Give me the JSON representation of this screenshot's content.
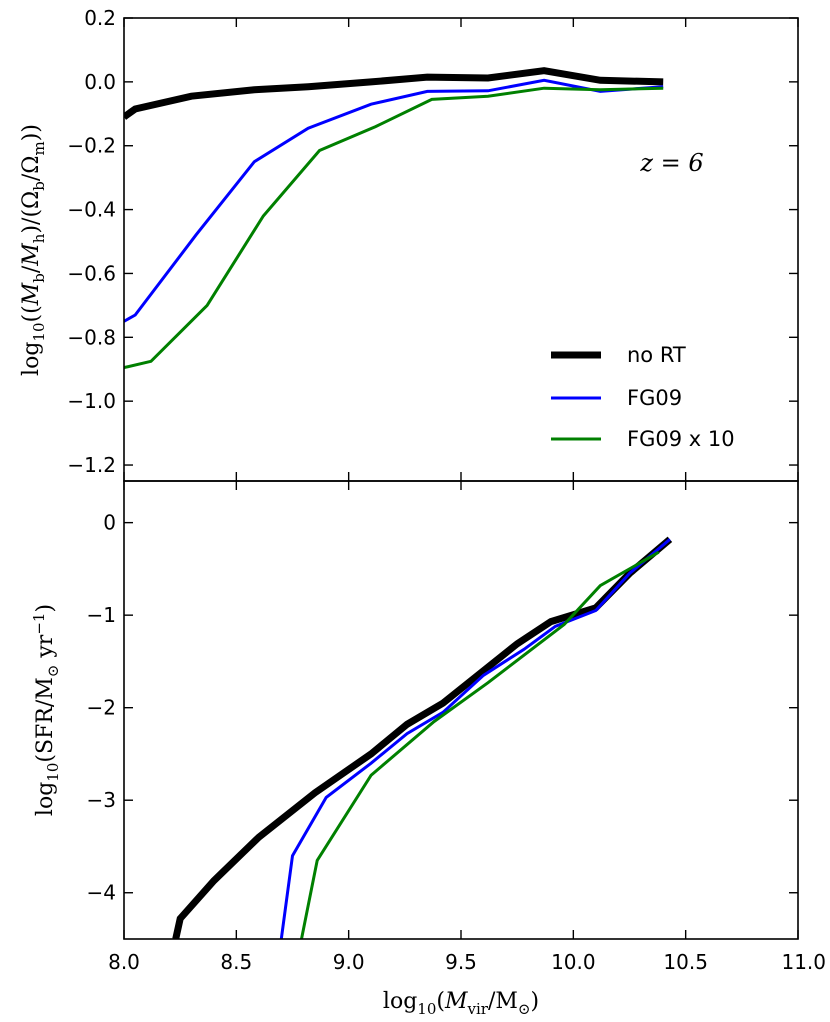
{
  "chart_data": [
    {
      "type": "line",
      "panel": "top",
      "ylabel": "log10((Mb/Mh)/(Ωb/Ωm))",
      "xlim": [
        8.0,
        11.0
      ],
      "ylim": [
        -1.25,
        0.2
      ],
      "yticks": [
        0.2,
        0.0,
        -0.2,
        -0.4,
        -0.6,
        -0.8,
        -1.0,
        -1.2
      ],
      "ytick_labels": [
        "0.2",
        "0.0",
        "−0.2",
        "−0.4",
        "−0.6",
        "−0.8",
        "−1.0",
        "−1.2"
      ],
      "annotation": "z = 6",
      "legend": {
        "placement": "lower-right",
        "entries": [
          "no RT",
          "FG09",
          "FG09 x 10"
        ]
      },
      "series": [
        {
          "name": "no RT",
          "color": "#000000",
          "x": [
            8.0,
            8.05,
            8.3,
            8.58,
            8.82,
            9.1,
            9.35,
            9.62,
            9.87,
            10.12,
            10.4
          ],
          "y": [
            -0.11,
            -0.085,
            -0.045,
            -0.025,
            -0.015,
            0.0,
            0.015,
            0.012,
            0.035,
            0.005,
            0.0
          ]
        },
        {
          "name": "FG09",
          "color": "#0000ff",
          "x": [
            8.0,
            8.05,
            8.32,
            8.58,
            8.82,
            9.1,
            9.35,
            9.62,
            9.87,
            10.12,
            10.4
          ],
          "y": [
            -0.75,
            -0.73,
            -0.48,
            -0.25,
            -0.145,
            -0.07,
            -0.03,
            -0.028,
            0.005,
            -0.03,
            -0.015
          ]
        },
        {
          "name": "FG09 x 10",
          "color": "#008000",
          "x": [
            8.0,
            8.12,
            8.37,
            8.62,
            8.87,
            9.12,
            9.37,
            9.62,
            9.87,
            10.12,
            10.4
          ],
          "y": [
            -0.895,
            -0.875,
            -0.7,
            -0.42,
            -0.215,
            -0.14,
            -0.055,
            -0.045,
            -0.02,
            -0.025,
            -0.02
          ]
        }
      ]
    },
    {
      "type": "line",
      "panel": "bottom",
      "xlabel": "log10(Mvir/M⊙)",
      "ylabel": "log10(SFR/M⊙ yr⁻¹)",
      "xlim": [
        8.0,
        11.0
      ],
      "ylim": [
        -4.5,
        0.45
      ],
      "xticks": [
        8.0,
        8.5,
        9.0,
        9.5,
        10.0,
        10.5,
        11.0
      ],
      "xtick_labels": [
        "8.0",
        "8.5",
        "9.0",
        "9.5",
        "10.0",
        "10.5",
        "11.0"
      ],
      "yticks": [
        0,
        -1,
        -2,
        -3,
        -4
      ],
      "ytick_labels": [
        "0",
        "−1",
        "−2",
        "−3",
        "−4"
      ],
      "series": [
        {
          "name": "no RT",
          "color": "#000000",
          "x": [
            8.23,
            8.25,
            8.4,
            8.6,
            8.85,
            9.1,
            9.26,
            9.42,
            9.6,
            9.75,
            9.9,
            10.1,
            10.25,
            10.43
          ],
          "y": [
            -4.5,
            -4.28,
            -3.87,
            -3.4,
            -2.92,
            -2.5,
            -2.18,
            -1.95,
            -1.6,
            -1.31,
            -1.07,
            -0.92,
            -0.55,
            -0.18
          ]
        },
        {
          "name": "FG09",
          "color": "#0000ff",
          "x": [
            8.7,
            8.75,
            8.9,
            9.1,
            9.26,
            9.42,
            9.6,
            9.78,
            9.92,
            10.1,
            10.25,
            10.43
          ],
          "y": [
            -4.5,
            -3.6,
            -2.97,
            -2.6,
            -2.28,
            -2.05,
            -1.65,
            -1.37,
            -1.12,
            -0.95,
            -0.55,
            -0.18
          ]
        },
        {
          "name": "FG09 x 10",
          "color": "#008000",
          "x": [
            8.79,
            8.86,
            9.1,
            9.38,
            9.62,
            9.96,
            10.12,
            10.38
          ],
          "y": [
            -4.5,
            -3.65,
            -2.73,
            -2.15,
            -1.73,
            -1.1,
            -0.68,
            -0.32
          ]
        }
      ]
    }
  ]
}
